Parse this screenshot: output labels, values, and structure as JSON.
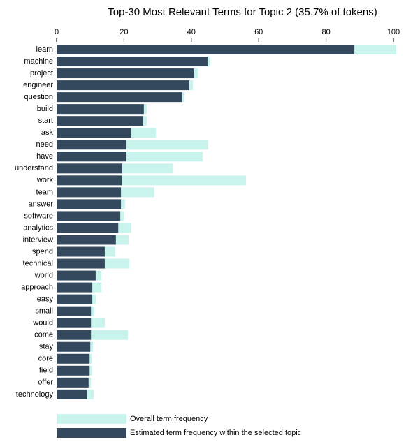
{
  "chart_data": {
    "type": "bar",
    "orientation": "horizontal",
    "overlay": true,
    "title": "Top-30 Most Relevant Terms for Topic 2 (35.7% of tokens)",
    "categories": [
      "learn",
      "machine",
      "project",
      "engineer",
      "question",
      "build",
      "start",
      "ask",
      "need",
      "have",
      "understand",
      "work",
      "team",
      "answer",
      "software",
      "analytics",
      "interview",
      "spend",
      "technical",
      "world",
      "approach",
      "easy",
      "small",
      "would",
      "come",
      "stay",
      "core",
      "field",
      "offer",
      "technology"
    ],
    "series": [
      {
        "name": "Overall term frequency",
        "color": "#c9f3ed",
        "values": [
          100.8,
          45.6,
          41.9,
          40.5,
          38.0,
          26.8,
          26.8,
          29.5,
          45.0,
          43.4,
          34.6,
          56.2,
          29.0,
          20.3,
          19.9,
          22.2,
          21.4,
          17.4,
          21.6,
          13.3,
          13.3,
          11.6,
          11.2,
          14.3,
          21.2,
          10.8,
          10.4,
          10.6,
          10.2,
          11.0
        ]
      },
      {
        "name": "Estimated term frequency within the selected topic",
        "color": "#34495e",
        "values": [
          88.4,
          44.8,
          40.7,
          39.4,
          37.3,
          25.9,
          25.7,
          22.2,
          20.7,
          20.7,
          19.5,
          19.3,
          19.1,
          19.1,
          18.9,
          18.3,
          17.6,
          14.3,
          14.3,
          11.6,
          10.6,
          10.6,
          10.2,
          10.2,
          10.2,
          10.0,
          9.8,
          9.8,
          9.5,
          9.1
        ]
      }
    ],
    "xlim": [
      0,
      100
    ],
    "xticks": [
      0,
      20,
      40,
      60,
      80,
      100
    ]
  }
}
